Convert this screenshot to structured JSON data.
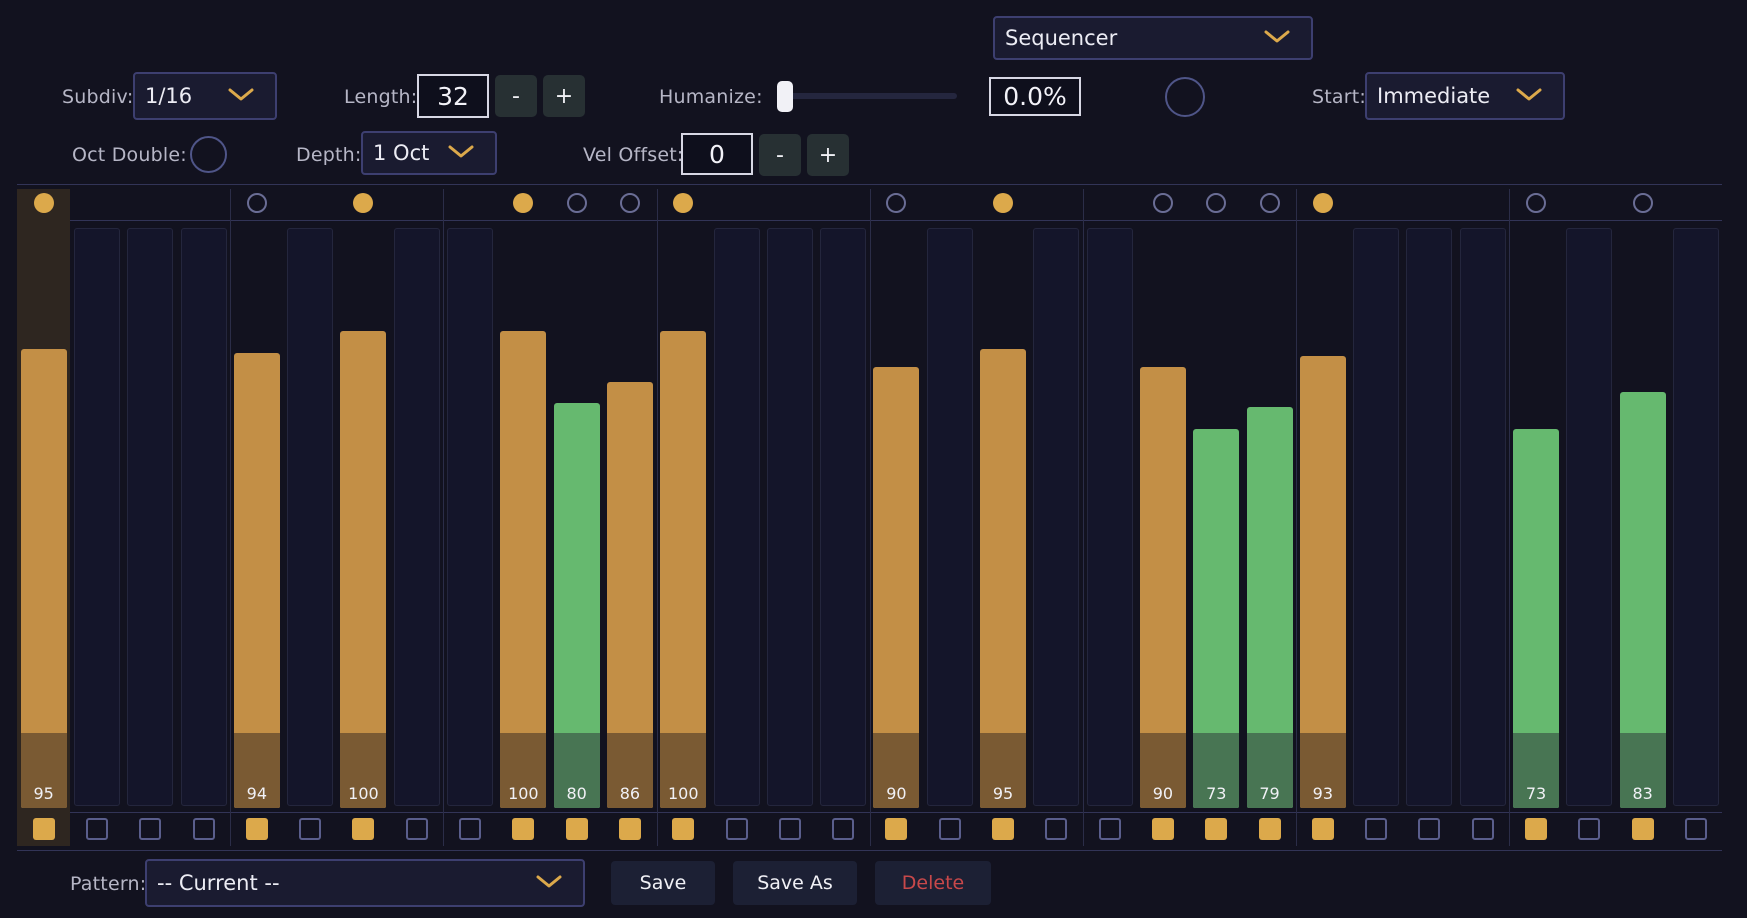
{
  "mode": {
    "value": "Sequencer"
  },
  "controls": {
    "subdiv": {
      "label": "Subdiv:",
      "value": "1/16"
    },
    "length": {
      "label": "Length:",
      "value": "32",
      "dec": "-",
      "inc": "+"
    },
    "humanize": {
      "label": "Humanize:",
      "value": "0.0%",
      "level": 0
    },
    "start": {
      "label": "Start:",
      "value": "Immediate"
    },
    "oct_double": {
      "label": "Oct Double:",
      "on": false
    },
    "depth": {
      "label": "Depth:",
      "value": "1 Oct"
    },
    "vel_offset": {
      "label": "Vel Offset:",
      "value": "0",
      "dec": "-",
      "inc": "+"
    }
  },
  "colors": {
    "accent": "#dca94b",
    "bar_normal": "#c38f46",
    "bar_normal_base": "#7a5a33",
    "bar_alt": "#66b96f",
    "bar_alt_base": "#487553",
    "current_step": "#2e2620"
  },
  "sequencer": {
    "max_velocity": 127,
    "current_step": 1,
    "steps": [
      {
        "n": 1,
        "on": true,
        "dot": "on",
        "vel": 95,
        "label": "95",
        "color": "normal"
      },
      {
        "n": 2,
        "on": false,
        "dot": null,
        "vel": null,
        "label": "",
        "color": "normal"
      },
      {
        "n": 3,
        "on": false,
        "dot": null,
        "vel": null,
        "label": "",
        "color": "normal"
      },
      {
        "n": 4,
        "on": false,
        "dot": null,
        "vel": null,
        "label": "",
        "color": "normal"
      },
      {
        "n": 5,
        "on": true,
        "dot": "off",
        "vel": 94,
        "label": "94",
        "color": "normal"
      },
      {
        "n": 6,
        "on": false,
        "dot": null,
        "vel": null,
        "label": "",
        "color": "normal"
      },
      {
        "n": 7,
        "on": true,
        "dot": "on",
        "vel": 100,
        "label": "100",
        "color": "normal"
      },
      {
        "n": 8,
        "on": false,
        "dot": null,
        "vel": null,
        "label": "",
        "color": "normal"
      },
      {
        "n": 9,
        "on": false,
        "dot": null,
        "vel": null,
        "label": "",
        "color": "normal"
      },
      {
        "n": 10,
        "on": true,
        "dot": "on",
        "vel": 100,
        "label": "100",
        "color": "normal"
      },
      {
        "n": 11,
        "on": true,
        "dot": "off",
        "vel": 80,
        "label": "80",
        "color": "alt"
      },
      {
        "n": 12,
        "on": true,
        "dot": "off",
        "vel": 86,
        "label": "86",
        "color": "normal"
      },
      {
        "n": 13,
        "on": true,
        "dot": "on",
        "vel": 100,
        "label": "100",
        "color": "normal"
      },
      {
        "n": 14,
        "on": false,
        "dot": null,
        "vel": null,
        "label": "",
        "color": "normal"
      },
      {
        "n": 15,
        "on": false,
        "dot": null,
        "vel": null,
        "label": "",
        "color": "normal"
      },
      {
        "n": 16,
        "on": false,
        "dot": null,
        "vel": null,
        "label": "",
        "color": "normal"
      },
      {
        "n": 17,
        "on": true,
        "dot": "off",
        "vel": 90,
        "label": "90",
        "color": "normal"
      },
      {
        "n": 18,
        "on": false,
        "dot": null,
        "vel": null,
        "label": "",
        "color": "normal"
      },
      {
        "n": 19,
        "on": true,
        "dot": "on",
        "vel": 95,
        "label": "95",
        "color": "normal"
      },
      {
        "n": 20,
        "on": false,
        "dot": null,
        "vel": null,
        "label": "",
        "color": "normal"
      },
      {
        "n": 21,
        "on": false,
        "dot": null,
        "vel": null,
        "label": "",
        "color": "normal"
      },
      {
        "n": 22,
        "on": true,
        "dot": "off",
        "vel": 90,
        "label": "90",
        "color": "normal"
      },
      {
        "n": 23,
        "on": true,
        "dot": "off",
        "vel": 73,
        "label": "73",
        "color": "alt"
      },
      {
        "n": 24,
        "on": true,
        "dot": "off",
        "vel": 79,
        "label": "79",
        "color": "alt"
      },
      {
        "n": 25,
        "on": true,
        "dot": "on",
        "vel": 93,
        "label": "93",
        "color": "normal"
      },
      {
        "n": 26,
        "on": false,
        "dot": null,
        "vel": null,
        "label": "",
        "color": "normal"
      },
      {
        "n": 27,
        "on": false,
        "dot": null,
        "vel": null,
        "label": "",
        "color": "normal"
      },
      {
        "n": 28,
        "on": false,
        "dot": null,
        "vel": null,
        "label": "",
        "color": "normal"
      },
      {
        "n": 29,
        "on": true,
        "dot": "off",
        "vel": 73,
        "label": "73",
        "color": "alt"
      },
      {
        "n": 30,
        "on": false,
        "dot": null,
        "vel": null,
        "label": "",
        "color": "normal"
      },
      {
        "n": 31,
        "on": true,
        "dot": "off",
        "vel": 83,
        "label": "83",
        "color": "alt"
      },
      {
        "n": 32,
        "on": false,
        "dot": null,
        "vel": null,
        "label": "",
        "color": "normal"
      }
    ]
  },
  "footer": {
    "pattern_label": "Pattern:",
    "pattern_value": "-- Current --",
    "save": "Save",
    "save_as": "Save As",
    "delete": "Delete",
    "delete_color": "#c8484a"
  }
}
